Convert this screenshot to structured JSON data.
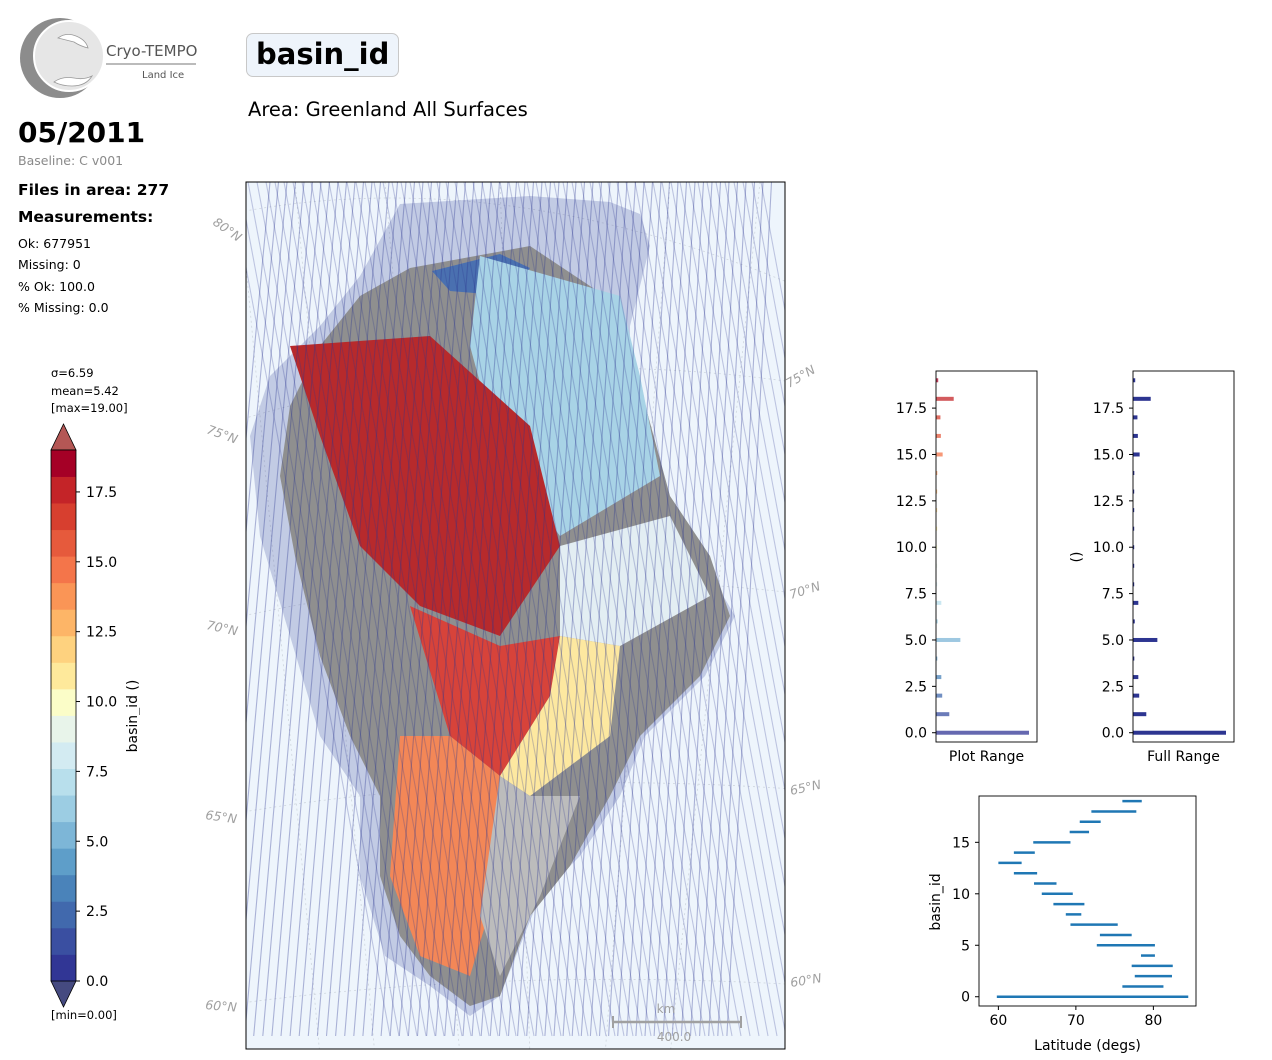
{
  "header": {
    "logo_text": "Cryo-TEMPO",
    "logo_subtext": "Land Ice",
    "month": "05/2011",
    "baseline": "Baseline: C v001",
    "files_in_area": "Files in area: 277",
    "measurements_heading": "Measurements:",
    "stats": [
      "Ok: 677951",
      "Missing: 0",
      "% Ok: 100.0",
      "% Missing: 0.0"
    ],
    "parameter": "basin_id",
    "area": "Area: Greenland All Surfaces"
  },
  "colorbar": {
    "sigma": "σ=6.59",
    "mean": "mean=5.42",
    "max": "[max=19.00]",
    "min": "[min=0.00]",
    "label": "basin_id ()",
    "ticks": [
      "0.0",
      "2.5",
      "5.0",
      "7.5",
      "10.0",
      "12.5",
      "15.0",
      "17.5"
    ],
    "colors": [
      "#313695",
      "#3a4fa1",
      "#4169ad",
      "#4a83ba",
      "#5e9ec9",
      "#7db6d7",
      "#9ccde3",
      "#b8dfec",
      "#d3ebf2",
      "#e8f4ea",
      "#fbfdc8",
      "#fee99b",
      "#fed27f",
      "#fdb567",
      "#fa9556",
      "#f4754a",
      "#e65a3c",
      "#d73f2f",
      "#c42428",
      "#a50026"
    ],
    "over_color": "#b45755",
    "under_color": "#454a80"
  },
  "map": {
    "lat_labels": [
      "80°N",
      "75°N",
      "70°N",
      "65°N",
      "60°N",
      "75°N",
      "70°N",
      "65°N",
      "60°N"
    ],
    "scale_unit": "km",
    "scale_value": "400.0",
    "colors": {
      "ocean": "#eef5fc",
      "track_outer": "#2b3590",
      "land_gray": "#8f8f8f"
    }
  },
  "chart_data": [
    {
      "type": "bar",
      "orientation": "horizontal",
      "xlabel": "Plot Range",
      "ylabel": "",
      "ylim": [
        -0.5,
        19.5
      ],
      "yticks": [
        "0.0",
        "2.5",
        "5.0",
        "7.5",
        "10.0",
        "12.5",
        "15.0",
        "17.5"
      ],
      "categories": [
        0,
        1,
        2,
        3,
        4,
        5,
        6,
        7,
        8,
        9,
        10,
        11,
        12,
        13,
        14,
        15,
        16,
        17,
        18,
        19
      ],
      "values": [
        210,
        30,
        14,
        12,
        3,
        55,
        4,
        12,
        1,
        2,
        2,
        1,
        1,
        2,
        3,
        15,
        11,
        10,
        40,
        5
      ]
    },
    {
      "type": "bar",
      "orientation": "horizontal",
      "xlabel": "Full Range",
      "ylabel": "()",
      "ylim": [
        -0.5,
        19.5
      ],
      "yticks": [
        "0.0",
        "2.5",
        "5.0",
        "7.5",
        "10.0",
        "12.5",
        "15.0",
        "17.5"
      ],
      "categories": [
        0,
        1,
        2,
        3,
        4,
        5,
        6,
        7,
        8,
        9,
        10,
        11,
        12,
        13,
        14,
        15,
        16,
        17,
        18,
        19
      ],
      "values": [
        210,
        30,
        14,
        12,
        3,
        55,
        4,
        12,
        1,
        2,
        2,
        1,
        1,
        2,
        3,
        15,
        11,
        10,
        40,
        5
      ]
    },
    {
      "type": "range",
      "xlabel": "Latitude (degs)",
      "ylabel": "basin_id",
      "xlim": [
        57.5,
        85.5
      ],
      "ylim": [
        -0.9,
        19.5
      ],
      "xticks": [
        "60",
        "70",
        "80"
      ],
      "yticks": [
        "0",
        "5",
        "10",
        "15"
      ],
      "color": "#1f77b4",
      "series": [
        {
          "id": 0,
          "range": [
            59.8,
            84.5
          ]
        },
        {
          "id": 1,
          "range": [
            76.0,
            81.3
          ]
        },
        {
          "id": 2,
          "range": [
            77.6,
            82.4
          ]
        },
        {
          "id": 3,
          "range": [
            77.2,
            82.5
          ]
        },
        {
          "id": 4,
          "range": [
            78.4,
            80.2
          ]
        },
        {
          "id": 5,
          "range": [
            72.7,
            80.2
          ]
        },
        {
          "id": 6,
          "range": [
            73.1,
            77.2
          ]
        },
        {
          "id": 7,
          "range": [
            69.3,
            75.4
          ]
        },
        {
          "id": 8,
          "range": [
            68.7,
            70.7
          ]
        },
        {
          "id": 9,
          "range": [
            67.1,
            71.1
          ]
        },
        {
          "id": 10,
          "range": [
            65.6,
            69.6
          ]
        },
        {
          "id": 11,
          "range": [
            64.6,
            67.5
          ]
        },
        {
          "id": 12,
          "range": [
            62.0,
            65.0
          ]
        },
        {
          "id": 13,
          "range": [
            60.0,
            63.0
          ]
        },
        {
          "id": 14,
          "range": [
            62.0,
            64.7
          ]
        },
        {
          "id": 15,
          "range": [
            64.5,
            69.3
          ]
        },
        {
          "id": 16,
          "range": [
            69.2,
            71.7
          ]
        },
        {
          "id": 17,
          "range": [
            70.5,
            73.2
          ]
        },
        {
          "id": 18,
          "range": [
            72.0,
            77.8
          ]
        },
        {
          "id": 19,
          "range": [
            76.0,
            78.5
          ]
        }
      ]
    }
  ]
}
